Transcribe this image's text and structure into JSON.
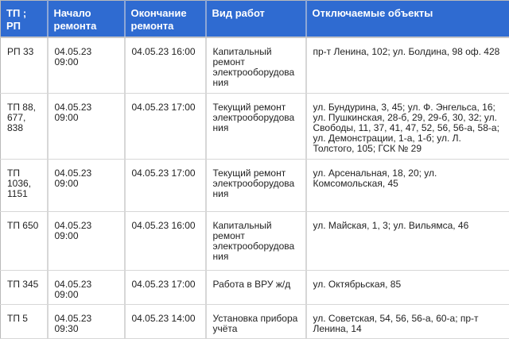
{
  "colors": {
    "header_bg": "#2f6bd1",
    "header_text": "#ffffff",
    "header_divider": "#8ea7d6",
    "body_border": "#d7d7d7",
    "outer_border": "#b9b9b9",
    "body_text": "#1f1f1f"
  },
  "table": {
    "headers": [
      "ТП ; РП",
      "Начало ремонта",
      "Окончание ремонта",
      "Вид работ",
      "Отключаемые объекты"
    ],
    "rows": [
      {
        "facility": "РП 33",
        "start": "04.05.23 09:00",
        "end": "04.05.23 16:00",
        "work_type": "Капитальный ремонт электрооборудования",
        "objects": "пр-т Ленина, 102; ул. Болдина, 98 оф. 428"
      },
      {
        "facility": "ТП 88, 677, 838",
        "start": "04.05.23 09:00",
        "end": "04.05.23 17:00",
        "work_type": "Текущий ремонт электрооборудования",
        "objects": "ул. Бундурина, 3, 45; ул. Ф. Энгельса, 16; ул. Пушкинская, 28-б, 29, 29-б, 30, 32; ул. Свободы, 11, 37, 41, 47, 52, 56, 56-а, 58-а; ул. Демонстрации, 1-а, 1-б; ул. Л. Толстого, 105; ГСК № 29"
      },
      {
        "facility": "ТП 1036, 1151",
        "start": "04.05.23 09:00",
        "end": "04.05.23 17:00",
        "work_type": "Текущий ремонт электрооборудования",
        "objects": "ул. Арсенальная, 18, 20; ул. Комсомольская, 45"
      },
      {
        "facility": "ТП 650",
        "start": "04.05.23 09:00",
        "end": "04.05.23 16:00",
        "work_type": "Капитальный ремонт электрооборудования",
        "objects": "ул. Майская, 1, 3; ул. Вильямса, 46"
      },
      {
        "facility": "ТП 345",
        "start": "04.05.23 09:00",
        "end": "04.05.23 17:00",
        "work_type": "Работа в ВРУ ж/д",
        "objects": "ул. Октябрьская, 85"
      },
      {
        "facility": "ТП 5",
        "start": "04.05.23 09:30",
        "end": "04.05.23 14:00",
        "work_type": "Установка прибора учёта",
        "objects": "ул. Советская, 54, 56, 56-а, 60-а; пр-т Ленина, 14"
      }
    ]
  }
}
